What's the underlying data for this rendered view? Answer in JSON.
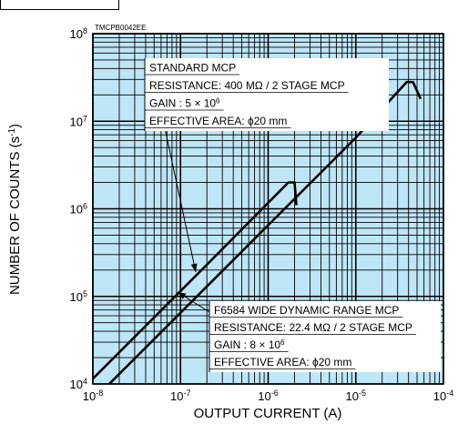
{
  "chart_data": {
    "type": "line",
    "figure_code": "TMCPB0042EE",
    "xlabel": "OUTPUT CURRENT (A)",
    "ylabel": "NUMBER OF COUNTS (s-1)",
    "x_scale": "log",
    "y_scale": "log",
    "xlim": [
      1e-08,
      0.0001
    ],
    "ylim": [
      10000.0,
      100000000.0
    ],
    "x_ticks": [
      {
        "base": "10",
        "exp": "-8"
      },
      {
        "base": "10",
        "exp": "-7"
      },
      {
        "base": "10",
        "exp": "-6"
      },
      {
        "base": "10",
        "exp": "-5"
      },
      {
        "base": "10",
        "exp": "-4"
      }
    ],
    "y_ticks": [
      {
        "base": "10",
        "exp": "4"
      },
      {
        "base": "10",
        "exp": "5"
      },
      {
        "base": "10",
        "exp": "6"
      },
      {
        "base": "10",
        "exp": "7"
      },
      {
        "base": "10",
        "exp": "8"
      }
    ],
    "grid": true,
    "background_color": "#bfe6f7",
    "line_color": "#000000",
    "series": [
      {
        "x": [
          1e-08,
          2e-07,
          1.7e-06,
          2e-06,
          2.1e-06
        ],
        "y": [
          11500.0,
          230000.0,
          2000000.0,
          2000000.0,
          1100000.0
        ]
      },
      {
        "x": [
          1e-08,
          1e-06,
          1e-05,
          3.8e-05,
          4.5e-05,
          5.5e-05
        ],
        "y": [
          6500.0,
          650000.0,
          6500000.0,
          28000000.0,
          28000000.0,
          18000000.0
        ]
      }
    ],
    "annotations": [
      {
        "lines": [
          "STANDARD MCP",
          "RESISTANCE: 400 MΩ / 2 STAGE MCP",
          {
            "text": "GAIN : 5 × 10",
            "sup": "6"
          },
          "EFFECTIVE AREA: ϕ20 mm"
        ]
      },
      {
        "lines": [
          "F6584 WIDE DYNAMIC RANGE MCP",
          "RESISTANCE: 22.4 MΩ / 2 STAGE MCP",
          {
            "text": "GAIN : 8 × 10",
            "sup": "6"
          },
          "EFFECTIVE AREA: ϕ20 mm"
        ]
      }
    ]
  }
}
